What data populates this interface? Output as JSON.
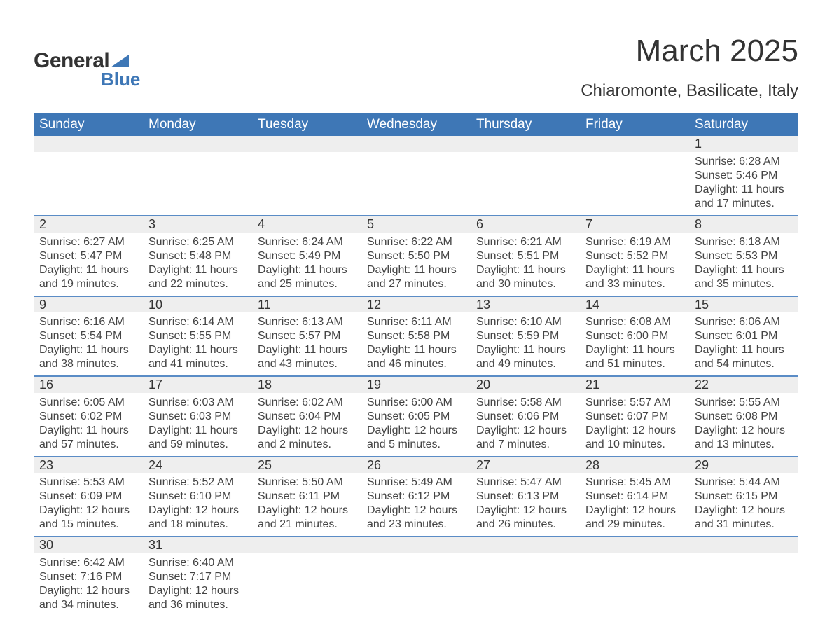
{
  "logo": {
    "text1": "General",
    "text2": "Blue",
    "brand_color": "#3e77b6"
  },
  "header": {
    "month_title": "March 2025",
    "location": "Chiaromonte, Basilicate, Italy"
  },
  "colors": {
    "header_bg": "#3e77b6",
    "header_text": "#ffffff",
    "daynum_bg": "#eeeeee",
    "row_divider": "#5a8cc6",
    "body_text": "#444444"
  },
  "fonts": {
    "title_size_pt": 33,
    "location_size_pt": 18,
    "header_size_pt": 14,
    "cell_size_pt": 12
  },
  "weekdays": [
    "Sunday",
    "Monday",
    "Tuesday",
    "Wednesday",
    "Thursday",
    "Friday",
    "Saturday"
  ],
  "weeks": [
    [
      null,
      null,
      null,
      null,
      null,
      null,
      {
        "n": "1",
        "sr": "Sunrise: 6:28 AM",
        "ss": "Sunset: 5:46 PM",
        "d1": "Daylight: 11 hours",
        "d2": "and 17 minutes."
      }
    ],
    [
      {
        "n": "2",
        "sr": "Sunrise: 6:27 AM",
        "ss": "Sunset: 5:47 PM",
        "d1": "Daylight: 11 hours",
        "d2": "and 19 minutes."
      },
      {
        "n": "3",
        "sr": "Sunrise: 6:25 AM",
        "ss": "Sunset: 5:48 PM",
        "d1": "Daylight: 11 hours",
        "d2": "and 22 minutes."
      },
      {
        "n": "4",
        "sr": "Sunrise: 6:24 AM",
        "ss": "Sunset: 5:49 PM",
        "d1": "Daylight: 11 hours",
        "d2": "and 25 minutes."
      },
      {
        "n": "5",
        "sr": "Sunrise: 6:22 AM",
        "ss": "Sunset: 5:50 PM",
        "d1": "Daylight: 11 hours",
        "d2": "and 27 minutes."
      },
      {
        "n": "6",
        "sr": "Sunrise: 6:21 AM",
        "ss": "Sunset: 5:51 PM",
        "d1": "Daylight: 11 hours",
        "d2": "and 30 minutes."
      },
      {
        "n": "7",
        "sr": "Sunrise: 6:19 AM",
        "ss": "Sunset: 5:52 PM",
        "d1": "Daylight: 11 hours",
        "d2": "and 33 minutes."
      },
      {
        "n": "8",
        "sr": "Sunrise: 6:18 AM",
        "ss": "Sunset: 5:53 PM",
        "d1": "Daylight: 11 hours",
        "d2": "and 35 minutes."
      }
    ],
    [
      {
        "n": "9",
        "sr": "Sunrise: 6:16 AM",
        "ss": "Sunset: 5:54 PM",
        "d1": "Daylight: 11 hours",
        "d2": "and 38 minutes."
      },
      {
        "n": "10",
        "sr": "Sunrise: 6:14 AM",
        "ss": "Sunset: 5:55 PM",
        "d1": "Daylight: 11 hours",
        "d2": "and 41 minutes."
      },
      {
        "n": "11",
        "sr": "Sunrise: 6:13 AM",
        "ss": "Sunset: 5:57 PM",
        "d1": "Daylight: 11 hours",
        "d2": "and 43 minutes."
      },
      {
        "n": "12",
        "sr": "Sunrise: 6:11 AM",
        "ss": "Sunset: 5:58 PM",
        "d1": "Daylight: 11 hours",
        "d2": "and 46 minutes."
      },
      {
        "n": "13",
        "sr": "Sunrise: 6:10 AM",
        "ss": "Sunset: 5:59 PM",
        "d1": "Daylight: 11 hours",
        "d2": "and 49 minutes."
      },
      {
        "n": "14",
        "sr": "Sunrise: 6:08 AM",
        "ss": "Sunset: 6:00 PM",
        "d1": "Daylight: 11 hours",
        "d2": "and 51 minutes."
      },
      {
        "n": "15",
        "sr": "Sunrise: 6:06 AM",
        "ss": "Sunset: 6:01 PM",
        "d1": "Daylight: 11 hours",
        "d2": "and 54 minutes."
      }
    ],
    [
      {
        "n": "16",
        "sr": "Sunrise: 6:05 AM",
        "ss": "Sunset: 6:02 PM",
        "d1": "Daylight: 11 hours",
        "d2": "and 57 minutes."
      },
      {
        "n": "17",
        "sr": "Sunrise: 6:03 AM",
        "ss": "Sunset: 6:03 PM",
        "d1": "Daylight: 11 hours",
        "d2": "and 59 minutes."
      },
      {
        "n": "18",
        "sr": "Sunrise: 6:02 AM",
        "ss": "Sunset: 6:04 PM",
        "d1": "Daylight: 12 hours",
        "d2": "and 2 minutes."
      },
      {
        "n": "19",
        "sr": "Sunrise: 6:00 AM",
        "ss": "Sunset: 6:05 PM",
        "d1": "Daylight: 12 hours",
        "d2": "and 5 minutes."
      },
      {
        "n": "20",
        "sr": "Sunrise: 5:58 AM",
        "ss": "Sunset: 6:06 PM",
        "d1": "Daylight: 12 hours",
        "d2": "and 7 minutes."
      },
      {
        "n": "21",
        "sr": "Sunrise: 5:57 AM",
        "ss": "Sunset: 6:07 PM",
        "d1": "Daylight: 12 hours",
        "d2": "and 10 minutes."
      },
      {
        "n": "22",
        "sr": "Sunrise: 5:55 AM",
        "ss": "Sunset: 6:08 PM",
        "d1": "Daylight: 12 hours",
        "d2": "and 13 minutes."
      }
    ],
    [
      {
        "n": "23",
        "sr": "Sunrise: 5:53 AM",
        "ss": "Sunset: 6:09 PM",
        "d1": "Daylight: 12 hours",
        "d2": "and 15 minutes."
      },
      {
        "n": "24",
        "sr": "Sunrise: 5:52 AM",
        "ss": "Sunset: 6:10 PM",
        "d1": "Daylight: 12 hours",
        "d2": "and 18 minutes."
      },
      {
        "n": "25",
        "sr": "Sunrise: 5:50 AM",
        "ss": "Sunset: 6:11 PM",
        "d1": "Daylight: 12 hours",
        "d2": "and 21 minutes."
      },
      {
        "n": "26",
        "sr": "Sunrise: 5:49 AM",
        "ss": "Sunset: 6:12 PM",
        "d1": "Daylight: 12 hours",
        "d2": "and 23 minutes."
      },
      {
        "n": "27",
        "sr": "Sunrise: 5:47 AM",
        "ss": "Sunset: 6:13 PM",
        "d1": "Daylight: 12 hours",
        "d2": "and 26 minutes."
      },
      {
        "n": "28",
        "sr": "Sunrise: 5:45 AM",
        "ss": "Sunset: 6:14 PM",
        "d1": "Daylight: 12 hours",
        "d2": "and 29 minutes."
      },
      {
        "n": "29",
        "sr": "Sunrise: 5:44 AM",
        "ss": "Sunset: 6:15 PM",
        "d1": "Daylight: 12 hours",
        "d2": "and 31 minutes."
      }
    ],
    [
      {
        "n": "30",
        "sr": "Sunrise: 6:42 AM",
        "ss": "Sunset: 7:16 PM",
        "d1": "Daylight: 12 hours",
        "d2": "and 34 minutes."
      },
      {
        "n": "31",
        "sr": "Sunrise: 6:40 AM",
        "ss": "Sunset: 7:17 PM",
        "d1": "Daylight: 12 hours",
        "d2": "and 36 minutes."
      },
      null,
      null,
      null,
      null,
      null
    ]
  ]
}
